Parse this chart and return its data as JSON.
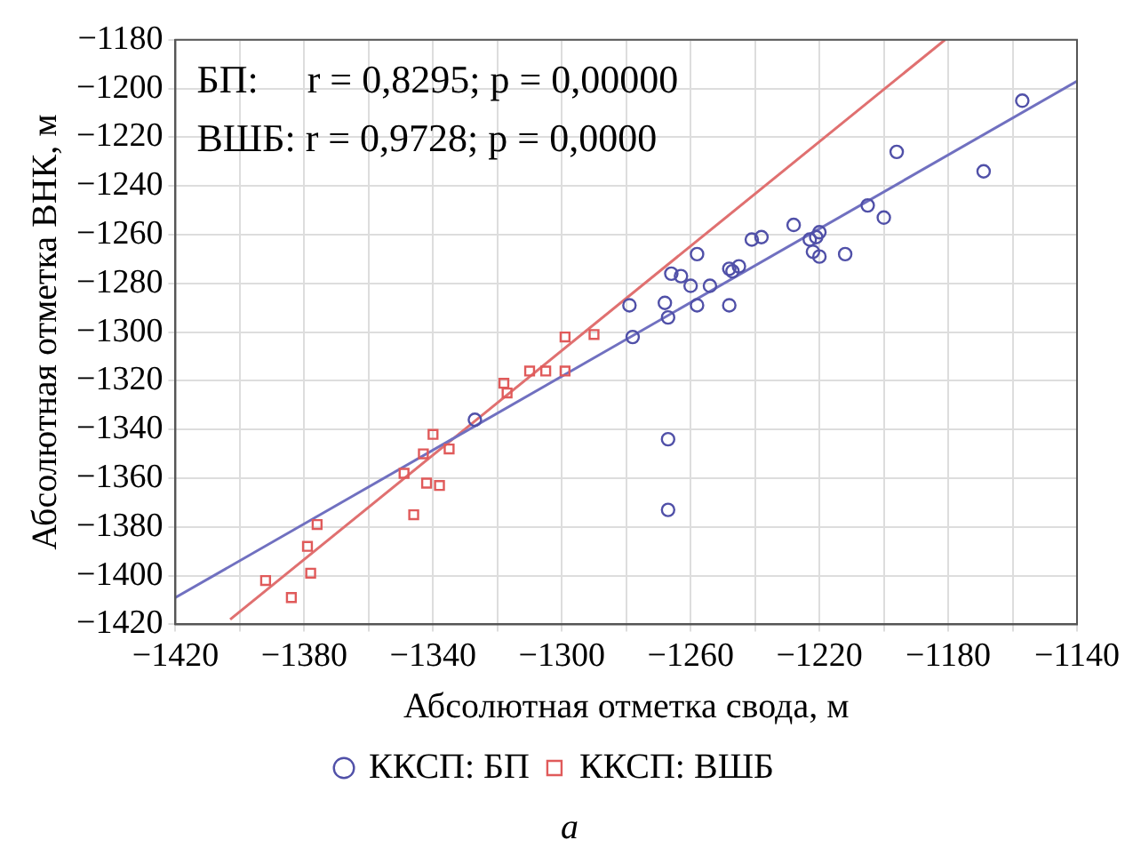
{
  "chart_data": {
    "type": "scatter",
    "xlabel": "Абсолютная отметка свода, м",
    "ylabel": "Абсолютная отметка ВНК, м",
    "annotations": [
      "БП:     r = 0,8295; p = 0,00000",
      "ВШБ: r = 0,9728; p = 0,0000",
      "а"
    ],
    "xlim": [
      -1420,
      -1140
    ],
    "ylim": [
      -1420,
      -1180
    ],
    "xticks": [
      -1420,
      {
        "value": -1400,
        "label": null
      },
      -1380,
      {
        "value": -1360,
        "label": null
      },
      -1340,
      {
        "value": -1320,
        "label": null
      },
      -1300,
      {
        "value": -1280,
        "label": null
      },
      -1260,
      {
        "value": -1240,
        "label": null
      },
      -1220,
      {
        "value": -1200,
        "label": null
      },
      -1180,
      {
        "value": -1160,
        "label": null
      },
      -1140
    ],
    "yticks": [
      -1420,
      -1400,
      -1380,
      -1360,
      -1340,
      -1320,
      -1300,
      -1280,
      -1260,
      -1240,
      -1220,
      -1200,
      -1180
    ],
    "grid": true,
    "legend": "bottom",
    "series": [
      {
        "name": "ККСП: БП",
        "color": "#5050a8",
        "marker": "circle",
        "x": [
          -1327,
          -1279,
          -1278,
          -1268,
          -1267,
          -1266,
          -1263,
          -1260,
          -1258,
          -1258,
          -1254,
          -1248,
          -1248,
          -1247,
          -1245,
          -1241,
          -1238,
          -1228,
          -1223,
          -1221,
          -1220,
          -1222,
          -1220,
          -1212,
          -1205,
          -1200,
          -1196,
          -1169,
          -1157,
          -1267,
          -1267
        ],
        "values": [
          -1336,
          -1289,
          -1302,
          -1288,
          -1294,
          -1276,
          -1277,
          -1281,
          -1268,
          -1289,
          -1281,
          -1289,
          -1274,
          -1275,
          -1273,
          -1262,
          -1261,
          -1256,
          -1262,
          -1261,
          -1259,
          -1267,
          -1269,
          -1268,
          -1248,
          -1253,
          -1226,
          -1234,
          -1205,
          -1344,
          -1373
        ]
      },
      {
        "name": "ККСП: ВШБ",
        "color": "#e05a5a",
        "marker": "square",
        "x": [
          -1392,
          -1384,
          -1378,
          -1379,
          -1376,
          -1349,
          -1346,
          -1343,
          -1342,
          -1340,
          -1338,
          -1335,
          -1318,
          -1317,
          -1310,
          -1305,
          -1299,
          -1299,
          -1290
        ],
        "values": [
          -1402,
          -1409,
          -1399,
          -1388,
          -1379,
          -1358,
          -1375,
          -1350,
          -1362,
          -1342,
          -1363,
          -1348,
          -1321,
          -1325,
          -1316,
          -1316,
          -1316,
          -1302,
          -1301
        ]
      },
      {
        "type": "line",
        "color": "#7070c0",
        "marker": "none",
        "x": [
          -1420,
          -1140
        ],
        "values": [
          -1409,
          -1197
        ]
      },
      {
        "type": "line",
        "color": "#e07070",
        "marker": "none",
        "x": [
          -1403,
          -1181
        ],
        "values": [
          -1418,
          -1180
        ]
      }
    ]
  }
}
